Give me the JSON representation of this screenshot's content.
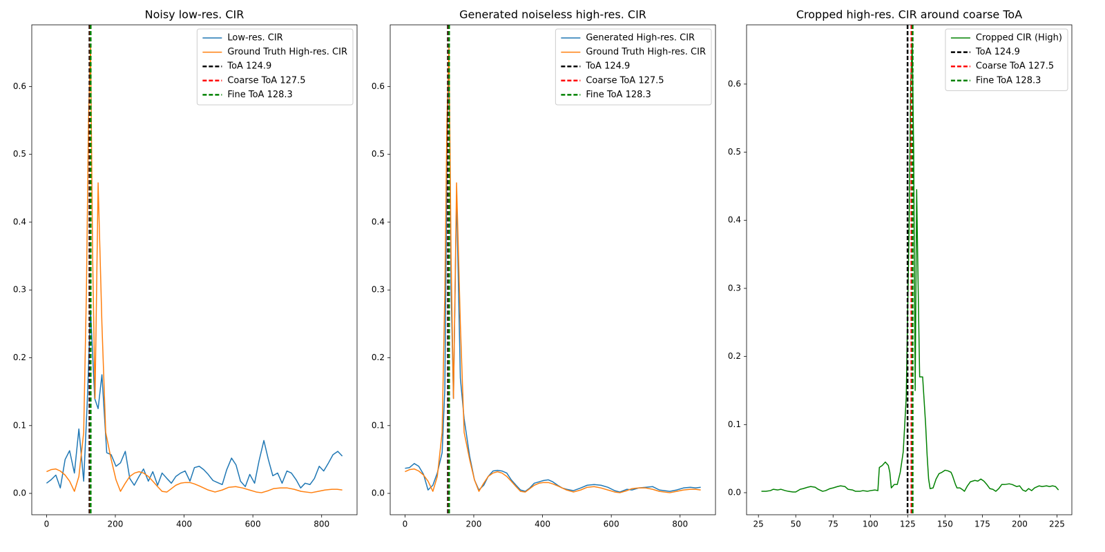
{
  "chart_data": [
    {
      "type": "line",
      "title": "Noisy low-res. CIR",
      "legend": "upper right",
      "xlim": [
        -43,
        903
      ],
      "ylim": [
        -0.0315,
        0.691
      ],
      "xticks": [
        0,
        200,
        400,
        600,
        800
      ],
      "yticks": [
        {
          "value": 0,
          "label": "0.0"
        },
        0.1,
        0.2,
        0.3,
        0.4,
        0.5,
        0.6
      ],
      "series": [
        {
          "name": "Low-res. CIR",
          "color": "#1f77b4",
          "x": [
            0,
            13,
            27,
            40,
            54,
            67,
            81,
            94,
            108,
            118,
            128,
            140,
            150,
            161,
            175,
            188,
            202,
            215,
            229,
            242,
            255,
            269,
            282,
            296,
            309,
            323,
            336,
            350,
            363,
            376,
            390,
            403,
            417,
            430,
            444,
            457,
            470,
            484,
            497,
            511,
            524,
            538,
            551,
            564,
            578,
            591,
            605,
            618,
            632,
            645,
            658,
            672,
            685,
            699,
            712,
            726,
            739,
            752,
            766,
            779,
            793,
            806,
            820,
            833,
            847,
            860
          ],
          "values": [
            0.015,
            0.02,
            0.027,
            0.008,
            0.05,
            0.063,
            0.03,
            0.095,
            0.018,
            0.13,
            0.27,
            0.14,
            0.125,
            0.175,
            0.06,
            0.057,
            0.04,
            0.045,
            0.062,
            0.022,
            0.012,
            0.025,
            0.036,
            0.018,
            0.032,
            0.012,
            0.03,
            0.022,
            0.015,
            0.025,
            0.03,
            0.033,
            0.018,
            0.038,
            0.04,
            0.035,
            0.028,
            0.019,
            0.016,
            0.013,
            0.035,
            0.052,
            0.042,
            0.018,
            0.01,
            0.028,
            0.015,
            0.048,
            0.078,
            0.05,
            0.026,
            0.03,
            0.015,
            0.033,
            0.03,
            0.02,
            0.008,
            0.015,
            0.013,
            0.022,
            0.04,
            0.033,
            0.045,
            0.057,
            0.062,
            0.055
          ]
        },
        {
          "name": "Ground Truth High-res. CIR",
          "color": "#ff7f0e",
          "x": [
            0,
            13,
            27,
            40,
            54,
            67,
            81,
            94,
            108,
            116,
            122,
            128,
            134,
            141,
            150,
            161,
            172,
            188,
            202,
            215,
            229,
            242,
            256,
            269,
            282,
            296,
            309,
            323,
            336,
            350,
            363,
            376,
            390,
            403,
            417,
            430,
            444,
            457,
            470,
            490,
            511,
            530,
            550,
            570,
            590,
            610,
            625,
            645,
            660,
            680,
            700,
            720,
            740,
            770,
            790,
            810,
            830,
            845,
            860
          ],
          "values": [
            0.032,
            0.035,
            0.036,
            0.033,
            0.027,
            0.018,
            0.003,
            0.025,
            0.09,
            0.3,
            0.55,
            0.66,
            0.35,
            0.14,
            0.458,
            0.25,
            0.09,
            0.05,
            0.02,
            0.003,
            0.015,
            0.025,
            0.03,
            0.032,
            0.03,
            0.025,
            0.018,
            0.01,
            0.003,
            0.002,
            0.007,
            0.012,
            0.015,
            0.016,
            0.016,
            0.014,
            0.011,
            0.008,
            0.005,
            0.002,
            0.005,
            0.009,
            0.01,
            0.008,
            0.005,
            0.002,
            0.001,
            0.004,
            0.007,
            0.008,
            0.008,
            0.006,
            0.003,
            0.001,
            0.003,
            0.005,
            0.006,
            0.006,
            0.005
          ]
        }
      ],
      "vlines": [
        {
          "name": "ToA 124.9",
          "color": "#000000",
          "x": 124.9
        },
        {
          "name": "Coarse ToA 127.5",
          "color": "#ff0000",
          "x": 127.5
        },
        {
          "name": "Fine ToA 128.3",
          "color": "#008000",
          "x": 128.3
        }
      ]
    },
    {
      "type": "line",
      "title": "Generated noiseless high-res. CIR",
      "legend": "upper right",
      "xlim": [
        -43,
        903
      ],
      "ylim": [
        -0.0315,
        0.691
      ],
      "xticks": [
        0,
        200,
        400,
        600,
        800
      ],
      "yticks": [
        {
          "value": 0,
          "label": "0.0"
        },
        0.1,
        0.2,
        0.3,
        0.4,
        0.5,
        0.6
      ],
      "series": [
        {
          "name": "Generated High-res. CIR",
          "color": "#1f77b4",
          "x": [
            0,
            13,
            27,
            40,
            54,
            67,
            81,
            94,
            108,
            116,
            122,
            128,
            134,
            141,
            150,
            161,
            172,
            188,
            202,
            215,
            229,
            242,
            256,
            269,
            282,
            296,
            309,
            323,
            336,
            350,
            363,
            376,
            390,
            403,
            417,
            430,
            444,
            457,
            470,
            490,
            511,
            530,
            550,
            570,
            590,
            610,
            625,
            645,
            660,
            680,
            700,
            720,
            740,
            770,
            790,
            810,
            830,
            845,
            860
          ],
          "values": [
            0.037,
            0.038,
            0.044,
            0.04,
            0.028,
            0.005,
            0.012,
            0.03,
            0.06,
            0.155,
            0.5,
            0.65,
            0.3,
            0.14,
            0.44,
            0.17,
            0.11,
            0.055,
            0.02,
            0.005,
            0.012,
            0.025,
            0.033,
            0.034,
            0.033,
            0.03,
            0.02,
            0.012,
            0.005,
            0.003,
            0.008,
            0.015,
            0.017,
            0.019,
            0.02,
            0.017,
            0.012,
            0.008,
            0.006,
            0.004,
            0.008,
            0.012,
            0.013,
            0.012,
            0.009,
            0.004,
            0.002,
            0.006,
            0.005,
            0.008,
            0.009,
            0.01,
            0.005,
            0.003,
            0.005,
            0.008,
            0.009,
            0.008,
            0.009
          ]
        },
        {
          "name": "Ground Truth High-res. CIR",
          "color": "#ff7f0e",
          "x": [
            0,
            13,
            27,
            40,
            54,
            67,
            81,
            94,
            108,
            116,
            122,
            128,
            134,
            141,
            150,
            161,
            172,
            188,
            202,
            215,
            229,
            242,
            256,
            269,
            282,
            296,
            309,
            323,
            336,
            350,
            363,
            376,
            390,
            403,
            417,
            430,
            444,
            457,
            470,
            490,
            511,
            530,
            550,
            570,
            590,
            610,
            625,
            645,
            660,
            680,
            700,
            720,
            740,
            770,
            790,
            810,
            830,
            845,
            860
          ],
          "values": [
            0.032,
            0.035,
            0.036,
            0.033,
            0.027,
            0.018,
            0.003,
            0.025,
            0.09,
            0.3,
            0.55,
            0.66,
            0.35,
            0.14,
            0.458,
            0.25,
            0.09,
            0.05,
            0.02,
            0.003,
            0.015,
            0.025,
            0.03,
            0.032,
            0.03,
            0.025,
            0.018,
            0.01,
            0.003,
            0.002,
            0.007,
            0.012,
            0.015,
            0.016,
            0.016,
            0.014,
            0.011,
            0.008,
            0.005,
            0.002,
            0.005,
            0.009,
            0.01,
            0.008,
            0.005,
            0.002,
            0.001,
            0.004,
            0.007,
            0.008,
            0.008,
            0.006,
            0.003,
            0.001,
            0.003,
            0.005,
            0.006,
            0.006,
            0.005
          ]
        }
      ],
      "vlines": [
        {
          "name": "ToA 124.9",
          "color": "#000000",
          "x": 124.9
        },
        {
          "name": "Coarse ToA 127.5",
          "color": "#ff0000",
          "x": 127.5
        },
        {
          "name": "Fine ToA 128.3",
          "color": "#008000",
          "x": 128.3
        }
      ]
    },
    {
      "type": "line",
      "title": "Cropped high-res. CIR around coarse ToA",
      "legend": "upper right",
      "xlim": [
        17.05,
        234.95
      ],
      "ylim": [
        -0.0324,
        0.687
      ],
      "xticks": [
        25,
        50,
        75,
        100,
        125,
        150,
        175,
        200,
        225
      ],
      "yticks": [
        {
          "value": 0,
          "label": "0.0"
        },
        0.1,
        0.2,
        0.3,
        0.4,
        0.5,
        0.6
      ],
      "series": [
        {
          "name": "Cropped CIR (High)",
          "color": "#008000",
          "x": [
            27,
            30,
            33,
            35,
            38,
            40,
            43,
            45,
            48,
            50,
            53,
            55,
            58,
            60,
            63,
            65,
            68,
            70,
            73,
            75,
            78,
            80,
            83,
            85,
            88,
            90,
            93,
            95,
            98,
            100,
            103,
            105,
            106,
            108,
            110,
            112,
            113,
            114,
            116,
            118,
            120,
            122,
            124,
            126,
            127,
            128,
            129,
            130,
            131,
            132,
            133,
            135,
            137,
            138,
            139,
            140,
            142,
            144,
            146,
            148,
            150,
            152,
            154,
            155,
            157,
            158,
            160,
            162,
            163,
            165,
            167,
            170,
            172,
            174,
            176,
            178,
            180,
            182,
            184,
            186,
            188,
            190,
            193,
            195,
            198,
            200,
            202,
            204,
            206,
            208,
            210,
            213,
            215,
            218,
            220,
            222,
            224,
            226
          ],
          "values": [
            0.002,
            0.002,
            0.003,
            0.005,
            0.004,
            0.005,
            0.003,
            0.002,
            0.001,
            0.001,
            0.005,
            0.006,
            0.008,
            0.009,
            0.008,
            0.005,
            0.002,
            0.003,
            0.006,
            0.007,
            0.009,
            0.01,
            0.009,
            0.005,
            0.004,
            0.002,
            0.002,
            0.003,
            0.002,
            0.003,
            0.004,
            0.003,
            0.037,
            0.04,
            0.045,
            0.04,
            0.03,
            0.007,
            0.012,
            0.012,
            0.03,
            0.06,
            0.14,
            0.4,
            0.6,
            0.66,
            0.5,
            0.15,
            0.445,
            0.3,
            0.17,
            0.17,
            0.1,
            0.055,
            0.02,
            0.006,
            0.007,
            0.02,
            0.028,
            0.03,
            0.033,
            0.032,
            0.03,
            0.025,
            0.012,
            0.007,
            0.007,
            0.004,
            0.002,
            0.01,
            0.016,
            0.018,
            0.017,
            0.02,
            0.017,
            0.012,
            0.006,
            0.005,
            0.002,
            0.006,
            0.012,
            0.012,
            0.013,
            0.012,
            0.009,
            0.01,
            0.004,
            0.002,
            0.006,
            0.003,
            0.007,
            0.01,
            0.009,
            0.01,
            0.009,
            0.01,
            0.009,
            0.004
          ]
        }
      ],
      "vlines": [
        {
          "name": "ToA 124.9",
          "color": "#000000",
          "x": 124.9
        },
        {
          "name": "Coarse ToA 127.5",
          "color": "#ff0000",
          "x": 127.5
        },
        {
          "name": "Fine ToA 128.3",
          "color": "#008000",
          "x": 128.3
        }
      ]
    }
  ]
}
